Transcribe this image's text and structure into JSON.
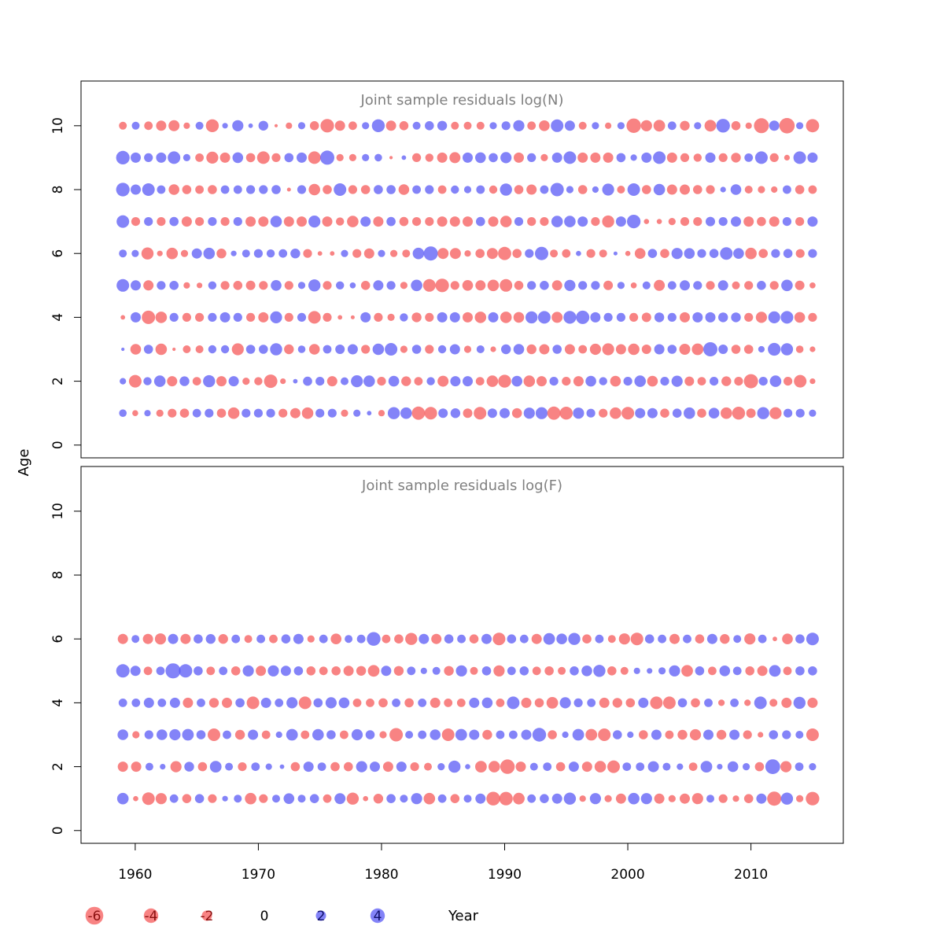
{
  "chart_data": {
    "type": "scatter",
    "subtype": "bubble",
    "ylabel": "Age",
    "xlabel": "Year",
    "x_ticks": [
      1960,
      1970,
      1980,
      1990,
      2000,
      2010
    ],
    "y_ticks": [
      0,
      2,
      4,
      6,
      8,
      10
    ],
    "xlim": [
      1955.6,
      2017.5
    ],
    "ylim": [
      -0.4,
      11.4
    ],
    "colors": {
      "positive": "#5a5af5",
      "negative": "#f55a5a",
      "axis": "#000000",
      "title": "#808080"
    },
    "legend": {
      "placement": "bottom",
      "entries": [
        {
          "label": "-6",
          "value": -6
        },
        {
          "label": "-4",
          "value": -4
        },
        {
          "label": "-2",
          "value": -2
        },
        {
          "label": "0",
          "value": 0
        },
        {
          "label": "2",
          "value": 2
        },
        {
          "label": "4",
          "value": 4
        }
      ]
    },
    "panels": [
      {
        "title": "Joint sample residuals log(N)",
        "ages": [
          1,
          2,
          3,
          4,
          5,
          6,
          7,
          8,
          9,
          10
        ],
        "year_start": 1959,
        "year_end": 2015,
        "residuals": {
          "1": [
            1.1,
            -0.7,
            0.8,
            -1.0,
            -1.5,
            -1.6,
            1.4,
            1.5,
            -1.6,
            -2.5,
            1.5,
            1.5,
            1.5,
            -1.5,
            -2.0,
            -2.5,
            1.5,
            1.5,
            -1.0,
            1.0,
            0.4,
            -0.8,
            2.8,
            2.5,
            -3.3,
            -3.0,
            1.7,
            1.8,
            -1.7,
            -3.0,
            1.7,
            2.0,
            -1.9,
            2.4,
            2.7,
            -3.3,
            -3.2,
            2.4,
            1.5,
            -1.5,
            -2.5,
            -3.0,
            2.0,
            2.0,
            -1.6,
            1.6,
            2.5,
            -1.6,
            2.2,
            -2.5,
            -3.2,
            -1.7,
            2.8,
            -2.7,
            1.5,
            1.5,
            1.0
          ],
          "2": [
            0.8,
            -3.0,
            1.3,
            2.5,
            -2.0,
            1.8,
            -1.4,
            2.8,
            -2.0,
            2.0,
            -1.0,
            -1.3,
            -3.4,
            -0.6,
            0.4,
            1.6,
            1.5,
            -2.0,
            1.2,
            2.7,
            2.5,
            -1.5,
            2.2,
            -1.8,
            -1.4,
            1.3,
            -2.3,
            2.0,
            2.0,
            -1.4,
            -2.5,
            -3.2,
            2.2,
            -2.5,
            -2.0,
            1.5,
            -1.5,
            -2.0,
            2.2,
            1.3,
            -2.2,
            1.5,
            2.5,
            -2.2,
            1.5,
            2.4,
            -1.7,
            -1.4,
            1.5,
            -1.8,
            -1.5,
            -3.8,
            1.5,
            2.5,
            -1.5,
            -3.0,
            -0.6
          ],
          "3": [
            0.2,
            -2.2,
            1.6,
            -2.5,
            -0.2,
            -1.2,
            -1.2,
            1.3,
            1.3,
            -2.7,
            1.6,
            1.6,
            2.8,
            -1.8,
            1.1,
            -2.2,
            1.4,
            1.7,
            2.0,
            -1.5,
            2.5,
            3.0,
            -1.0,
            1.6,
            -1.5,
            1.3,
            2.0,
            -1.0,
            1.2,
            -0.6,
            1.8,
            2.2,
            -1.8,
            -2.0,
            1.6,
            -2.0,
            -1.4,
            -2.4,
            -2.7,
            -2.0,
            -2.5,
            -1.7,
            2.0,
            1.6,
            -2.3,
            -2.6,
            3.8,
            1.7,
            -1.6,
            -1.6,
            0.8,
            3.1,
            2.8,
            -1.1,
            -0.6
          ],
          "4": [
            -0.4,
            2.0,
            -3.4,
            -2.5,
            1.5,
            -1.5,
            -1.5,
            1.5,
            2.0,
            1.5,
            -1.5,
            -2.0,
            2.7,
            -1.5,
            1.5,
            -3.0,
            -1.5,
            -0.4,
            -0.3,
            2.0,
            -1.5,
            -1.0,
            1.3,
            -1.8,
            -1.5,
            2.0,
            2.0,
            -2.0,
            -2.5,
            2.0,
            -2.5,
            -2.2,
            2.8,
            3.0,
            -2.3,
            3.1,
            3.4,
            2.0,
            1.5,
            1.5,
            -1.5,
            -1.7,
            1.8,
            1.5,
            -2.0,
            2.0,
            2.0,
            1.8,
            1.8,
            -1.5,
            -2.4,
            2.7,
            3.0,
            -2.2,
            -1.5
          ],
          "5": [
            3.0,
            2.0,
            -2.0,
            1.5,
            1.6,
            -0.8,
            -0.6,
            1.3,
            -1.5,
            -1.6,
            -1.7,
            -1.5,
            2.2,
            -1.5,
            1.0,
            2.8,
            -1.5,
            1.3,
            0.7,
            -1.6,
            2.0,
            1.5,
            -1.0,
            2.5,
            -3.0,
            -3.5,
            -1.5,
            -2.2,
            -2.0,
            -2.5,
            -3.0,
            -1.6,
            1.5,
            1.6,
            -2.0,
            2.4,
            1.5,
            1.5,
            -1.7,
            1.0,
            -0.7,
            1.2,
            -2.3,
            1.4,
            2.0,
            1.5,
            -1.5,
            2.0,
            -1.2,
            -1.5,
            1.6,
            -1.5,
            2.5,
            -1.7,
            -0.7
          ],
          "6": [
            1.2,
            1.0,
            -2.8,
            -0.6,
            -2.5,
            -1.0,
            2.0,
            2.5,
            -1.8,
            0.6,
            1.2,
            1.5,
            1.3,
            1.4,
            1.8,
            -1.5,
            -0.4,
            -0.4,
            1.0,
            -1.5,
            -2.0,
            1.0,
            -1.0,
            -1.2,
            2.5,
            3.8,
            -2.3,
            -2.3,
            -0.8,
            -1.6,
            -2.3,
            -3.3,
            -1.6,
            1.5,
            3.4,
            -1.2,
            -1.4,
            0.5,
            -1.5,
            -1.2,
            0.3,
            -0.5,
            -2.2,
            1.6,
            -1.6,
            2.4,
            2.2,
            1.5,
            1.6,
            3.0,
            2.2,
            -2.5,
            -1.6,
            1.5,
            1.6,
            -1.5,
            1.5
          ],
          "7": [
            3.0,
            -1.5,
            1.5,
            -1.5,
            1.6,
            -2.0,
            -1.5,
            1.5,
            -1.5,
            1.5,
            -2.0,
            -2.0,
            2.5,
            -2.0,
            -2.0,
            2.7,
            -2.0,
            -1.3,
            -2.5,
            2.0,
            -2.0,
            1.6,
            -1.6,
            -1.5,
            -1.5,
            -2.0,
            -2.0,
            -2.0,
            1.6,
            -2.0,
            -2.5,
            1.5,
            -1.5,
            -1.5,
            2.5,
            2.5,
            2.0,
            -1.5,
            -2.8,
            2.0,
            3.5,
            -0.5,
            -0.5,
            -1.0,
            -1.5,
            -1.5,
            1.7,
            1.5,
            2.0,
            -2.0,
            -1.6,
            -2.0,
            1.5,
            -1.5,
            2.0
          ],
          "8": [
            3.5,
            2.0,
            3.0,
            1.4,
            -2.2,
            -1.6,
            -1.4,
            -1.6,
            1.4,
            1.4,
            1.5,
            1.5,
            1.6,
            -0.3,
            1.5,
            -2.5,
            -1.6,
            3.0,
            -1.5,
            -1.6,
            1.6,
            1.6,
            -2.2,
            1.4,
            1.5,
            -1.4,
            1.3,
            1.0,
            1.4,
            -1.3,
            2.8,
            -1.6,
            -2.0,
            1.4,
            3.4,
            1.0,
            -1.6,
            0.8,
            2.7,
            -1.2,
            3.0,
            -1.6,
            2.5,
            -2.0,
            -2.0,
            -1.6,
            -1.5,
            0.6,
            2.2,
            -1.2,
            -1.0,
            -0.8,
            1.4,
            -1.6,
            -1.4
          ],
          "9": [
            3.5,
            2.0,
            1.5,
            2.0,
            3.0,
            1.0,
            -1.4,
            -2.7,
            -2.0,
            2.2,
            -1.6,
            -3.0,
            -1.5,
            1.6,
            2.0,
            -3.0,
            3.8,
            -1.0,
            -1.0,
            1.0,
            1.1,
            -0.2,
            0.4,
            -1.5,
            -1.3,
            -2.0,
            -2.3,
            2.0,
            2.2,
            1.6,
            2.4,
            -2.0,
            1.5,
            -1.0,
            2.0,
            3.0,
            -2.0,
            -2.0,
            -2.0,
            1.6,
            0.8,
            2.0,
            3.0,
            -2.0,
            -1.5,
            -1.3,
            2.0,
            -1.5,
            -1.8,
            1.4,
            3.0,
            -1.5,
            -0.6,
            3.0,
            2.0
          ],
          "10": [
            -1.2,
            1.2,
            -1.4,
            -2.0,
            -2.3,
            -0.8,
            1.2,
            -3.2,
            0.6,
            2.4,
            0.4,
            1.8,
            -0.2,
            -0.8,
            1.0,
            -1.6,
            -3.5,
            -2.0,
            -1.4,
            1.0,
            3.2,
            -2.0,
            -1.6,
            1.2,
            1.6,
            1.8,
            -1.2,
            -1.2,
            -1.2,
            1.0,
            1.5,
            2.4,
            -1.4,
            -2.2,
            3.0,
            2.0,
            -1.2,
            1.0,
            -0.8,
            1.0,
            -4.0,
            -2.4,
            -2.6,
            1.4,
            -1.8,
            1.0,
            -2.6,
            3.6,
            -1.6,
            -0.8,
            -4.3,
            2.0,
            -4.5,
            1.0,
            -3.3
          ]
        }
      },
      {
        "title": "Joint sample residuals log(F)",
        "ages": [
          1,
          2,
          3,
          4,
          5,
          6
        ],
        "year_start": 1959,
        "year_end": 2015,
        "residuals": {
          "1": [
            2.5,
            -0.5,
            -3.0,
            -2.4,
            1.4,
            -1.6,
            1.6,
            -1.5,
            0.6,
            1.2,
            -2.5,
            -1.5,
            1.2,
            2.2,
            1.2,
            1.6,
            -1.4,
            2.3,
            -2.8,
            -0.5,
            -1.8,
            1.6,
            1.2,
            2.4,
            -2.5,
            1.4,
            -1.6,
            1.2,
            2.0,
            -3.6,
            -3.5,
            -2.6,
            1.4,
            1.6,
            2.0,
            2.8,
            -0.8,
            2.4,
            -1.0,
            -2.0,
            2.5,
            2.4,
            -2.0,
            -1.0,
            -2.0,
            -2.4,
            1.2,
            -1.5,
            -0.8,
            -1.6,
            2.0,
            -3.8,
            2.8,
            -1.0,
            -3.5
          ],
          "2": [
            -2.0,
            -2.0,
            1.2,
            0.6,
            -2.4,
            1.8,
            -1.6,
            2.6,
            1.2,
            -1.5,
            1.4,
            0.8,
            0.4,
            -1.6,
            2.0,
            1.4,
            -1.6,
            -1.6,
            2.4,
            2.0,
            -2.0,
            2.0,
            -1.5,
            -1.2,
            1.0,
            2.8,
            0.5,
            -2.6,
            -2.5,
            -4.0,
            -2.0,
            1.2,
            1.4,
            -1.6,
            2.0,
            -2.0,
            -2.5,
            -3.0,
            1.4,
            1.4,
            2.3,
            1.2,
            0.8,
            -1.4,
            2.6,
            0.6,
            2.2,
            1.0,
            -1.6,
            4.2,
            -2.4,
            1.4,
            1.0
          ],
          "3": [
            2.2,
            -1.0,
            1.5,
            2.2,
            2.4,
            2.6,
            1.6,
            -3.0,
            1.4,
            -1.8,
            2.0,
            -1.4,
            0.8,
            2.6,
            -1.4,
            2.5,
            1.6,
            -1.4,
            2.4,
            1.6,
            -1.0,
            -3.4,
            1.2,
            1.4,
            2.2,
            -3.0,
            2.6,
            2.0,
            -1.8,
            1.4,
            1.4,
            2.0,
            3.6,
            -1.6,
            0.8,
            2.6,
            -2.6,
            -3.0,
            1.6,
            0.8,
            -1.6,
            2.0,
            -1.4,
            -1.8,
            -2.4,
            2.0,
            -1.8,
            2.0,
            -1.5,
            -0.6,
            1.6,
            1.5,
            1.2,
            -3.0
          ],
          "4": [
            1.4,
            1.4,
            2.0,
            1.4,
            2.0,
            -2.0,
            1.4,
            -1.8,
            -2.0,
            1.6,
            -3.0,
            2.0,
            1.4,
            2.4,
            -3.0,
            1.6,
            2.4,
            2.2,
            -1.4,
            -1.4,
            -1.6,
            1.4,
            -1.6,
            1.4,
            -2.0,
            -1.4,
            -1.4,
            2.0,
            2.2,
            -1.4,
            3.0,
            -2.0,
            -1.6,
            -2.6,
            2.4,
            1.5,
            1.4,
            -2.0,
            -1.8,
            -1.6,
            2.0,
            -3.0,
            -3.0,
            1.6,
            -1.6,
            1.4,
            -0.8,
            1.4,
            -0.8,
            3.0,
            -1.2,
            -2.0,
            2.8,
            -2.0
          ],
          "5": [
            3.4,
            2.0,
            -1.4,
            1.4,
            4.4,
            3.4,
            1.6,
            -1.4,
            1.4,
            -1.6,
            2.4,
            -2.0,
            2.4,
            2.0,
            1.6,
            -1.6,
            -1.4,
            -1.6,
            -2.0,
            -1.8,
            -2.6,
            2.0,
            -1.8,
            1.4,
            0.8,
            1.2,
            -1.8,
            2.4,
            -1.2,
            1.6,
            -2.4,
            1.4,
            1.6,
            -1.4,
            -1.6,
            -1.2,
            1.6,
            2.2,
            2.8,
            -1.6,
            -1.2,
            0.8,
            0.6,
            1.0,
            2.4,
            -2.6,
            1.6,
            -1.4,
            2.2,
            1.4,
            -1.6,
            -2.0,
            2.6,
            -1.4,
            1.6,
            1.6
          ],
          "6": [
            -2.0,
            1.2,
            -2.0,
            -2.4,
            2.0,
            -2.0,
            1.6,
            1.8,
            -1.8,
            1.4,
            -1.2,
            1.4,
            -1.4,
            1.6,
            2.0,
            -1.0,
            1.4,
            -2.2,
            1.2,
            1.4,
            3.6,
            -1.4,
            -1.6,
            -2.8,
            2.0,
            -2.0,
            1.6,
            1.4,
            -1.6,
            2.0,
            -3.0,
            1.6,
            1.4,
            -2.0,
            2.6,
            2.2,
            2.8,
            -1.6,
            1.4,
            -1.2,
            -2.4,
            -3.0,
            1.6,
            1.4,
            -2.0,
            1.4,
            -1.6,
            2.0,
            -1.8,
            1.2,
            -2.4,
            1.4,
            -0.4,
            -2.2,
            1.6,
            3.0
          ]
        }
      }
    ]
  }
}
